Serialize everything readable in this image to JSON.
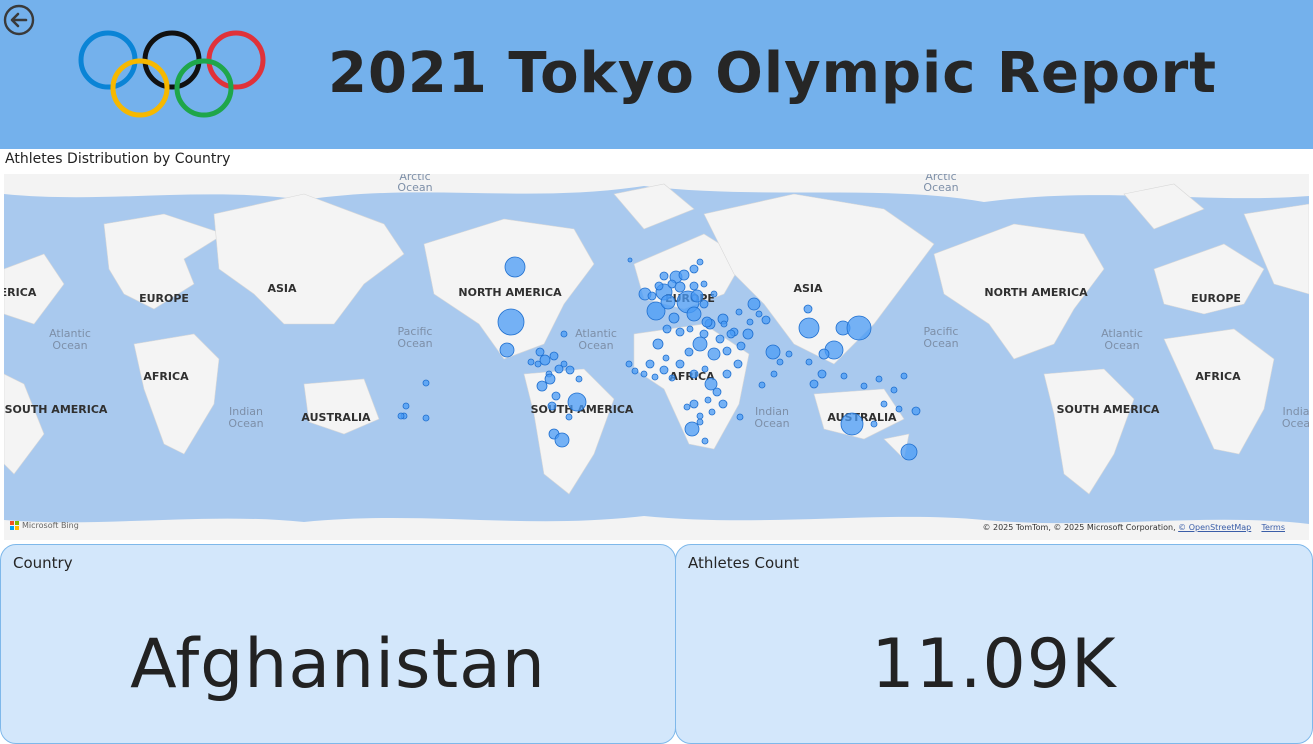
{
  "header": {
    "title": "2021 Tokyo Olympic Report",
    "back_icon": "back-arrow-icon",
    "logo": "olympic-rings-logo",
    "background_color": "#74b1ec"
  },
  "map_visual": {
    "title": "Athletes Distribution by Country",
    "continent_labels": [
      "ERICA",
      "EUROPE",
      "ASIA",
      "NORTH AMERICA",
      "EUROPE",
      "ASIA",
      "NORTH AMERICA",
      "EUROPE",
      "AFRICA",
      "SOUTH AMERICA",
      "AUSTRALIA",
      "SOUTH AMERICA",
      "AFRICA",
      "AUSTRALIA",
      "AFRICA",
      "SOUTH AMERICA"
    ],
    "ocean_labels": [
      "Arctic",
      "Ocean",
      "Arctic",
      "Ocean",
      "Atlantic",
      "Ocean",
      "Pacific",
      "Ocean",
      "Atlantic",
      "Ocean",
      "Pacific",
      "Ocean",
      "Atlantic",
      "Ocean",
      "Indian",
      "Ocean",
      "Indian",
      "Ocean",
      "India",
      "Ocea"
    ],
    "attribution": "© 2025 TomTom, © 2025 Microsoft Corporation,",
    "attribution_link": "© OpenStreetMap",
    "terms_link": "Terms",
    "provider": "Microsoft Bing",
    "bubble_color": "#4a9bf5"
  },
  "cards": {
    "country": {
      "label": "Country",
      "value": "Afghanistan"
    },
    "athletes": {
      "label": "Athletes Count",
      "value": "11.09K"
    }
  },
  "colors": {
    "card_background": "#d3e7fb",
    "card_border": "#7eb8ea"
  }
}
